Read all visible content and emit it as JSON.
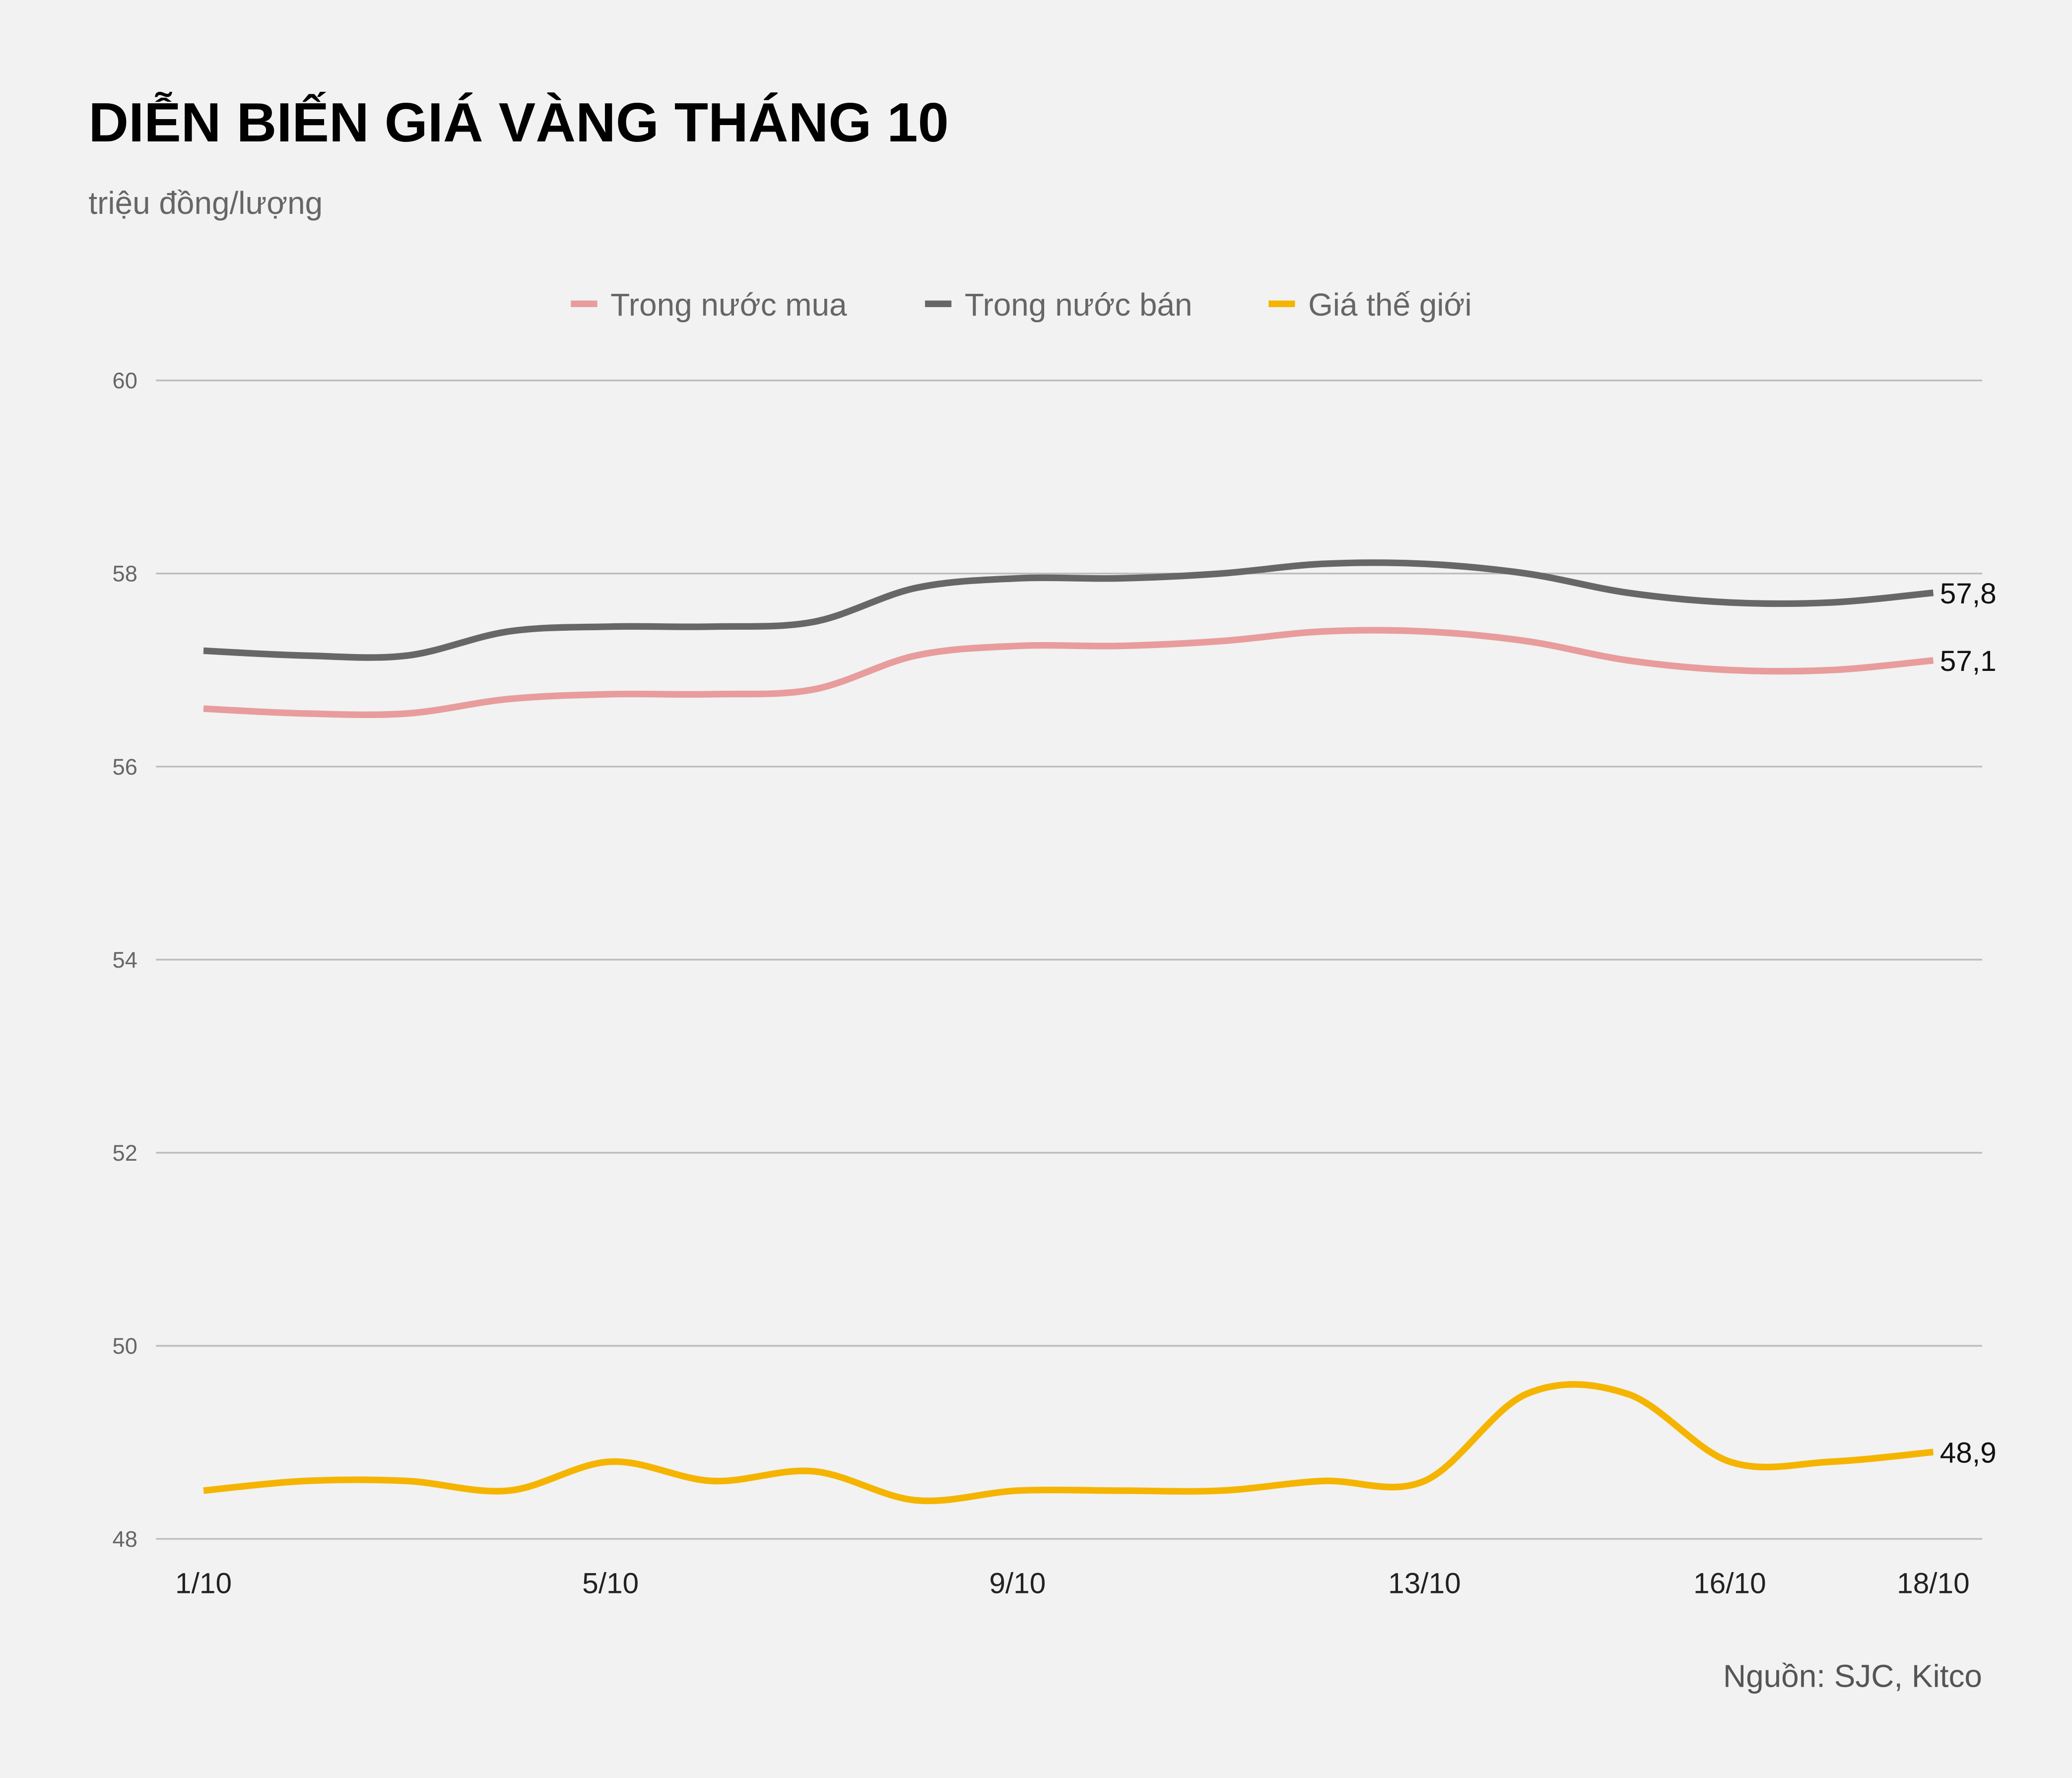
{
  "chart_data": {
    "type": "line",
    "title": "DIỄN BIẾN GIÁ VÀNG THÁNG 10",
    "subtitle": "triệu đồng/lượng",
    "source": "Nguồn: SJC, Kitco",
    "legend_position": "top",
    "grid": true,
    "ylim": [
      48,
      60
    ],
    "y_ticks": [
      "48",
      "50",
      "52",
      "54",
      "56",
      "58",
      "60"
    ],
    "x": [
      "1/10",
      "2/10",
      "3/10",
      "4/10",
      "5/10",
      "6/10",
      "7/10",
      "8/10",
      "9/10",
      "10/10",
      "11/10",
      "12/10",
      "13/10",
      "14/10",
      "15/10",
      "16/10",
      "17/10",
      "18/10"
    ],
    "x_ticks": [
      "1/10",
      "5/10",
      "9/10",
      "13/10",
      "16/10",
      "18/10"
    ],
    "series": [
      {
        "name": "Trong nước mua",
        "color": "#e89c9c",
        "end_label": "57,1",
        "values": [
          56.6,
          56.55,
          56.55,
          56.7,
          56.75,
          56.75,
          56.8,
          57.15,
          57.25,
          57.25,
          57.3,
          57.4,
          57.4,
          57.3,
          57.1,
          57.0,
          57.0,
          57.1
        ]
      },
      {
        "name": "Trong nước bán",
        "color": "#676767",
        "end_label": "57,8",
        "values": [
          57.2,
          57.15,
          57.15,
          57.4,
          57.45,
          57.45,
          57.5,
          57.85,
          57.95,
          57.95,
          58.0,
          58.1,
          58.1,
          58.0,
          57.8,
          57.7,
          57.7,
          57.8
        ]
      },
      {
        "name": "Giá thế giới",
        "color": "#f5b400",
        "end_label": "48,9",
        "values": [
          48.5,
          48.6,
          48.6,
          48.5,
          48.8,
          48.6,
          48.7,
          48.4,
          48.5,
          48.5,
          48.5,
          48.6,
          48.6,
          49.5,
          49.5,
          48.8,
          48.8,
          48.9
        ]
      }
    ]
  }
}
